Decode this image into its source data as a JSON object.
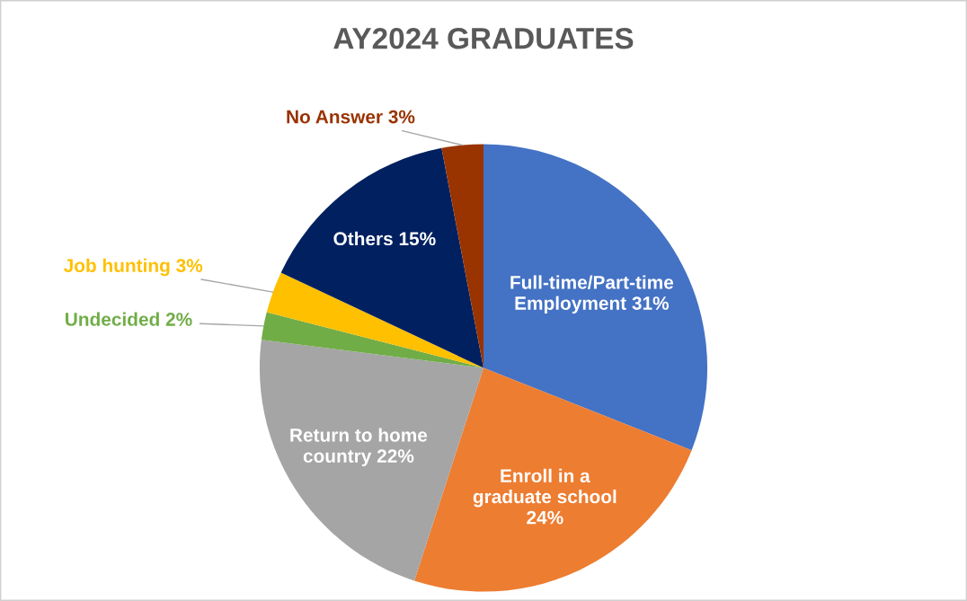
{
  "chart_data": {
    "type": "pie",
    "title": "AY2024 GRADUATES",
    "categories": [
      "Full-time/Part-time Employment",
      "Enroll in a graduate school",
      "Return to home country",
      "Undecided",
      "Job hunting",
      "Others",
      "No Answer"
    ],
    "values": [
      31,
      24,
      22,
      2,
      3,
      15,
      3
    ],
    "colors": [
      "#4472c4",
      "#ed7d31",
      "#a5a5a5",
      "#70ad47",
      "#ffc000",
      "#002060",
      "#993300"
    ],
    "value_labels": [
      "31%",
      "24%",
      "22%",
      "2%",
      "3%",
      "15%",
      "3%"
    ]
  }
}
